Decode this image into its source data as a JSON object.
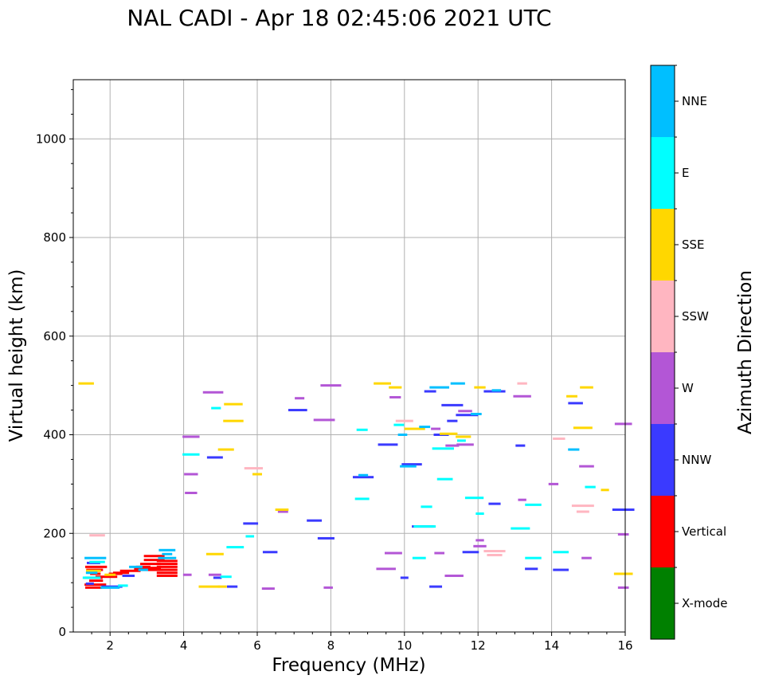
{
  "chart_data": {
    "type": "scatter",
    "title": "NAL CADI - Apr 18 02:45:06 2021 UTC",
    "xlabel": "Frequency (MHz)",
    "ylabel": "Virtual height (km)",
    "xlim": [
      1,
      16
    ],
    "ylim": [
      0,
      1120
    ],
    "xticks": [
      2,
      4,
      6,
      8,
      10,
      12,
      14,
      16
    ],
    "yticks": [
      0,
      200,
      400,
      600,
      800,
      1000
    ],
    "xtick_labels": [
      "2",
      "4",
      "6",
      "8",
      "10",
      "12",
      "14",
      "16"
    ],
    "ytick_labels": [
      "0",
      "200",
      "400",
      "600",
      "800",
      "1000"
    ],
    "grid": true,
    "colorbar": {
      "title": "Azimuth Direction",
      "categories": [
        {
          "label": "X-mode",
          "color": "#008000"
        },
        {
          "label": "Vertical",
          "color": "#ff0000"
        },
        {
          "label": "NNW",
          "color": "#3a3aff"
        },
        {
          "label": "W",
          "color": "#b356d6"
        },
        {
          "label": "SSW",
          "color": "#ffb6c1"
        },
        {
          "label": "SSE",
          "color": "#ffd700"
        },
        {
          "label": "E",
          "color": "#00ffff"
        },
        {
          "label": "NNE",
          "color": "#00bfff"
        }
      ]
    },
    "series": [
      {
        "name": "Vertical",
        "points": [
          [
            1.55,
            90
          ],
          [
            1.6,
            96
          ],
          [
            1.62,
            104
          ],
          [
            1.55,
            110
          ],
          [
            1.6,
            118
          ],
          [
            1.58,
            126
          ],
          [
            1.62,
            132
          ],
          [
            1.9,
            112
          ],
          [
            2.15,
            118
          ],
          [
            2.3,
            120
          ],
          [
            2.55,
            124
          ],
          [
            2.8,
            128
          ],
          [
            2.9,
            132
          ],
          [
            3.1,
            130
          ],
          [
            3.15,
            126
          ],
          [
            3.1,
            138
          ],
          [
            3.2,
            146
          ],
          [
            3.2,
            154
          ],
          [
            3.55,
            114
          ],
          [
            3.55,
            120
          ],
          [
            3.55,
            126
          ],
          [
            3.55,
            132
          ],
          [
            3.55,
            138
          ],
          [
            3.55,
            144
          ]
        ]
      },
      {
        "name": "NNW",
        "points": [
          [
            1.55,
            140
          ],
          [
            1.45,
            98
          ],
          [
            2.05,
            92
          ],
          [
            2.5,
            114
          ],
          [
            4.85,
            354
          ],
          [
            4.92,
            110
          ],
          [
            5.32,
            92
          ],
          [
            5.82,
            220
          ],
          [
            6.35,
            162
          ],
          [
            7.1,
            450
          ],
          [
            7.55,
            226
          ],
          [
            7.87,
            190
          ],
          [
            8.88,
            314
          ],
          [
            9.55,
            380
          ],
          [
            10.0,
            110
          ],
          [
            10.2,
            340
          ],
          [
            10.5,
            214
          ],
          [
            10.7,
            488
          ],
          [
            10.85,
            92
          ],
          [
            11.0,
            400
          ],
          [
            11.3,
            460
          ],
          [
            11.3,
            428
          ],
          [
            11.7,
            440
          ],
          [
            11.8,
            162
          ],
          [
            12.45,
            488
          ],
          [
            12.45,
            260
          ],
          [
            13.15,
            378
          ],
          [
            13.45,
            128
          ],
          [
            14.25,
            126
          ],
          [
            14.65,
            464
          ],
          [
            15.95,
            248
          ]
        ]
      },
      {
        "name": "W",
        "points": [
          [
            4.2,
            396
          ],
          [
            4.2,
            320
          ],
          [
            4.2,
            282
          ],
          [
            4.1,
            116
          ],
          [
            4.8,
            486
          ],
          [
            4.85,
            116
          ],
          [
            6.3,
            88
          ],
          [
            6.7,
            244
          ],
          [
            7.15,
            474
          ],
          [
            7.82,
            430
          ],
          [
            7.93,
            90
          ],
          [
            8.0,
            500
          ],
          [
            9.5,
            128
          ],
          [
            9.75,
            476
          ],
          [
            9.7,
            160
          ],
          [
            10.85,
            412
          ],
          [
            10.95,
            160
          ],
          [
            11.3,
            378
          ],
          [
            11.35,
            114
          ],
          [
            11.65,
            380
          ],
          [
            11.65,
            448
          ],
          [
            12.05,
            186
          ],
          [
            12.05,
            174
          ],
          [
            13.2,
            268
          ],
          [
            13.2,
            478
          ],
          [
            14.05,
            300
          ],
          [
            14.95,
            336
          ],
          [
            14.95,
            150
          ],
          [
            15.95,
            422
          ],
          [
            15.95,
            198
          ],
          [
            15.95,
            90
          ]
        ]
      },
      {
        "name": "SSW",
        "points": [
          [
            1.65,
            196
          ],
          [
            5.9,
            332
          ],
          [
            10.0,
            428
          ],
          [
            12.45,
            164
          ],
          [
            12.45,
            156
          ],
          [
            13.2,
            504
          ],
          [
            14.2,
            392
          ],
          [
            14.85,
            256
          ],
          [
            14.85,
            244
          ]
        ]
      },
      {
        "name": "SSE",
        "points": [
          [
            1.35,
            504
          ],
          [
            1.55,
            124
          ],
          [
            2.0,
            116
          ],
          [
            4.7,
            92
          ],
          [
            4.85,
            158
          ],
          [
            5.05,
            92
          ],
          [
            5.15,
            370
          ],
          [
            5.35,
            428
          ],
          [
            5.35,
            462
          ],
          [
            6.0,
            320
          ],
          [
            6.67,
            248
          ],
          [
            9.4,
            504
          ],
          [
            9.75,
            496
          ],
          [
            10.28,
            412
          ],
          [
            11.2,
            402
          ],
          [
            11.6,
            396
          ],
          [
            12.05,
            496
          ],
          [
            14.55,
            478
          ],
          [
            14.85,
            414
          ],
          [
            14.95,
            496
          ],
          [
            15.45,
            288
          ],
          [
            15.95,
            118
          ]
        ]
      },
      {
        "name": "E",
        "points": [
          [
            1.65,
            142
          ],
          [
            1.5,
            110
          ],
          [
            2.35,
            94
          ],
          [
            4.2,
            360
          ],
          [
            4.88,
            454
          ],
          [
            5.15,
            112
          ],
          [
            5.4,
            172
          ],
          [
            5.8,
            194
          ],
          [
            8.85,
            410
          ],
          [
            8.85,
            270
          ],
          [
            9.85,
            420
          ],
          [
            10.55,
            214
          ],
          [
            10.4,
            150
          ],
          [
            10.6,
            254
          ],
          [
            11.1,
            310
          ],
          [
            11.05,
            372
          ],
          [
            11.55,
            388
          ],
          [
            11.9,
            272
          ],
          [
            12.05,
            240
          ],
          [
            13.15,
            210
          ],
          [
            13.5,
            258
          ],
          [
            13.5,
            150
          ],
          [
            14.25,
            162
          ],
          [
            15.05,
            294
          ]
        ]
      },
      {
        "name": "NNE",
        "points": [
          [
            1.6,
            150
          ],
          [
            1.5,
            120
          ],
          [
            2.0,
            90
          ],
          [
            2.7,
            132
          ],
          [
            2.9,
            126
          ],
          [
            3.55,
            150
          ],
          [
            3.55,
            158
          ],
          [
            3.55,
            166
          ],
          [
            8.88,
            318
          ],
          [
            9.95,
            400
          ],
          [
            10.1,
            336
          ],
          [
            10.55,
            416
          ],
          [
            10.95,
            496
          ],
          [
            11.45,
            504
          ],
          [
            11.95,
            442
          ],
          [
            12.5,
            490
          ],
          [
            14.6,
            370
          ]
        ]
      }
    ]
  }
}
